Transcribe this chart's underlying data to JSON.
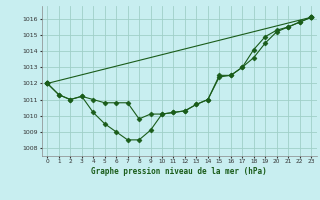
{
  "title": "Graphe pression niveau de la mer (hPa)",
  "bg_color": "#c8eef0",
  "grid_color": "#a0cfc8",
  "line_color": "#1a5c1a",
  "xlim": [
    -0.5,
    23.5
  ],
  "ylim": [
    1007.5,
    1016.8
  ],
  "yticks": [
    1008,
    1009,
    1010,
    1011,
    1012,
    1013,
    1014,
    1015,
    1016
  ],
  "xticks": [
    0,
    1,
    2,
    3,
    4,
    5,
    6,
    7,
    8,
    9,
    10,
    11,
    12,
    13,
    14,
    15,
    16,
    17,
    18,
    19,
    20,
    21,
    22,
    23
  ],
  "series1_x": [
    0,
    1,
    2,
    3,
    4,
    5,
    6,
    7,
    8,
    9,
    10,
    11,
    12,
    13,
    14,
    15,
    16,
    17,
    18,
    19,
    20,
    21,
    22,
    23
  ],
  "series1_y": [
    1012.0,
    1011.3,
    1011.0,
    1011.2,
    1010.2,
    1009.5,
    1009.0,
    1008.5,
    1008.5,
    1009.1,
    1010.1,
    1010.2,
    1010.3,
    1010.7,
    1011.0,
    1012.5,
    1012.5,
    1013.0,
    1014.1,
    1014.9,
    1015.3,
    1015.5,
    1015.8,
    1016.1
  ],
  "series2_x": [
    0,
    1,
    2,
    3,
    4,
    5,
    6,
    7,
    8,
    9,
    10,
    11,
    12,
    13,
    14,
    15,
    16,
    17,
    18,
    19,
    20,
    21,
    22,
    23
  ],
  "series2_y": [
    1012.0,
    1011.3,
    1011.0,
    1011.2,
    1011.0,
    1010.8,
    1010.8,
    1010.8,
    1009.8,
    1010.1,
    1010.1,
    1010.2,
    1010.3,
    1010.7,
    1011.0,
    1012.4,
    1012.5,
    1013.0,
    1013.6,
    1014.5,
    1015.2,
    1015.5,
    1015.8,
    1016.1
  ],
  "series3_x": [
    0,
    23
  ],
  "series3_y": [
    1012.0,
    1016.1
  ]
}
